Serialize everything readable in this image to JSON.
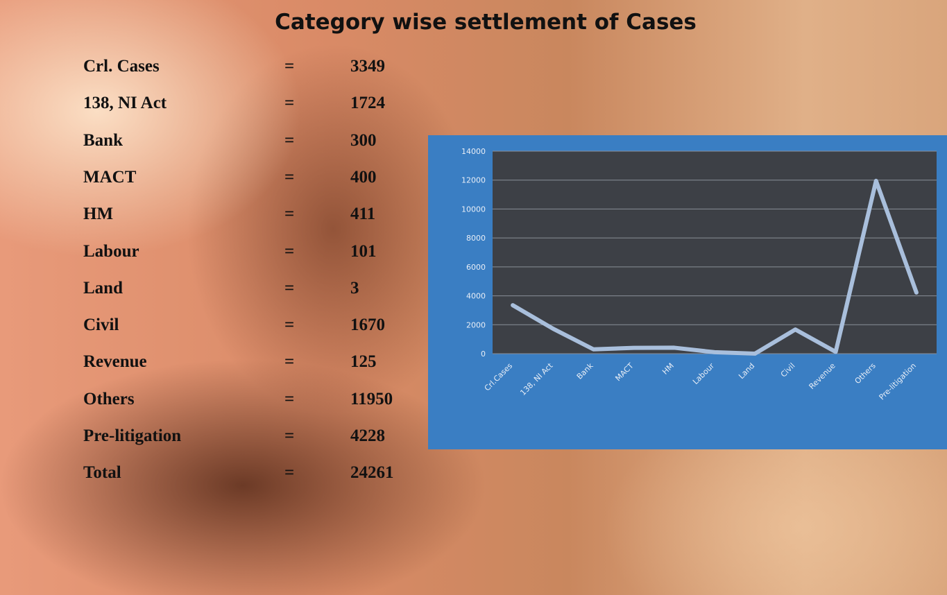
{
  "title": "Category wise settlement of Cases",
  "table": {
    "rows": [
      [
        "Crl. Cases",
        "=",
        3349
      ],
      [
        "138, NI Act",
        "=",
        1724
      ],
      [
        "Bank",
        "=",
        300
      ],
      [
        "MACT",
        "=",
        400
      ],
      [
        "HM",
        "=",
        411
      ],
      [
        "Labour",
        "=",
        101
      ],
      [
        "Land",
        "=",
        3
      ],
      [
        "Civil",
        "=",
        1670
      ],
      [
        "Revenue",
        "=",
        125
      ],
      [
        "Others",
        "=",
        11950
      ],
      [
        "Pre-litigation",
        "=",
        4228
      ],
      [
        "Total",
        "=",
        24261
      ]
    ]
  },
  "chart_data": {
    "type": "line",
    "categories": [
      "Crl.Cases",
      "138, NI Act",
      "Bank",
      "MACT",
      "HM",
      "Labour",
      "Land",
      "Civil",
      "Revenue",
      "Others",
      "Pre-litigation"
    ],
    "values": [
      3349,
      1724,
      300,
      400,
      411,
      101,
      3,
      1670,
      125,
      11950,
      4228
    ],
    "color": "#a9bfdc",
    "ylim": [
      0,
      14000
    ],
    "yticks": [
      0,
      2000,
      4000,
      6000,
      8000,
      10000,
      12000,
      14000
    ],
    "grid": true
  }
}
